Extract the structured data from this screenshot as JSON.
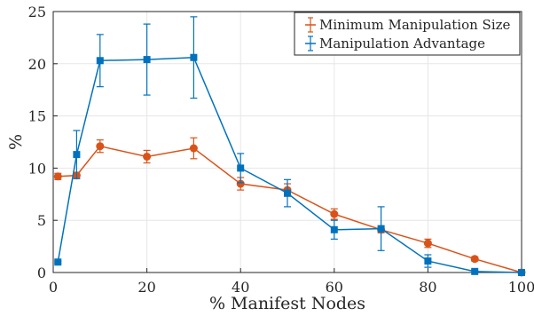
{
  "chart_data": {
    "type": "line",
    "title": "",
    "xlabel": "% Manifest Nodes",
    "ylabel": "%",
    "xlim": [
      0,
      100
    ],
    "ylim": [
      0,
      25
    ],
    "xticks": [
      0,
      20,
      40,
      60,
      80,
      100
    ],
    "yticks": [
      0,
      5,
      10,
      15,
      20,
      25
    ],
    "grid": true,
    "legend_position": "top-right",
    "series": [
      {
        "name": "Minimum Manipulation Size",
        "color": "#d95319",
        "marker": "circle",
        "x": [
          1,
          5,
          10,
          20,
          30,
          40,
          50,
          60,
          70,
          80,
          90,
          100
        ],
        "y": [
          9.2,
          9.3,
          12.1,
          11.1,
          11.9,
          8.5,
          7.9,
          5.6,
          4.1,
          2.8,
          1.3,
          0.0
        ],
        "err": [
          0.3,
          0.3,
          0.6,
          0.6,
          1.0,
          0.6,
          0.6,
          0.5,
          0.3,
          0.4,
          0.2,
          0.1
        ]
      },
      {
        "name": "Manipulation Advantage",
        "color": "#0072bd",
        "marker": "square",
        "x": [
          1,
          5,
          10,
          20,
          30,
          40,
          50,
          60,
          70,
          80,
          90,
          100
        ],
        "y": [
          1.0,
          11.3,
          20.3,
          20.4,
          20.6,
          10.0,
          7.6,
          4.1,
          4.2,
          1.1,
          0.1,
          0.0
        ],
        "err": [
          0.1,
          2.3,
          2.5,
          3.4,
          3.9,
          1.4,
          1.3,
          0.9,
          2.1,
          0.6,
          0.1,
          0.0
        ]
      }
    ]
  }
}
